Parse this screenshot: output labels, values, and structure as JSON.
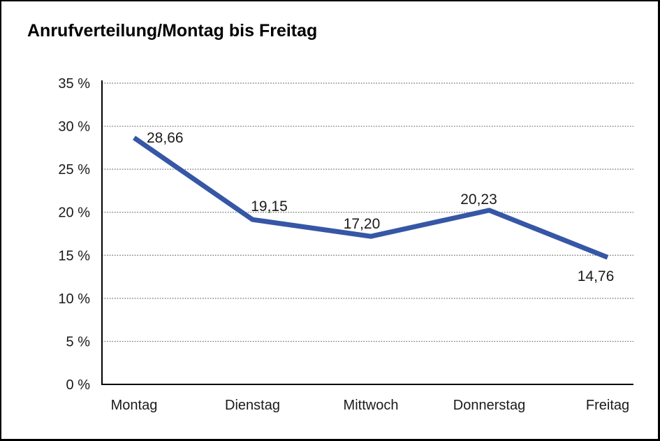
{
  "chart_data": {
    "type": "line",
    "title": "Anrufverteilung/Montag bis Freitag",
    "categories": [
      "Montag",
      "Dienstag",
      "Mittwoch",
      "Donnerstag",
      "Freitag"
    ],
    "series": [
      {
        "name": "Anrufverteilung",
        "values": [
          28.66,
          19.15,
          17.2,
          20.23,
          14.76
        ],
        "data_labels": [
          "28,66",
          "19,15",
          "17,20",
          "20,23",
          "14,76"
        ]
      }
    ],
    "xlabel": "",
    "ylabel": "",
    "ylim": [
      0,
      35
    ],
    "y_tick_step": 5,
    "y_ticks": [
      {
        "value": 35,
        "label": "35 %"
      },
      {
        "value": 30,
        "label": "30 %"
      },
      {
        "value": 25,
        "label": "25 %"
      },
      {
        "value": 20,
        "label": "20 %"
      },
      {
        "value": 15,
        "label": "15 %"
      },
      {
        "value": 10,
        "label": "10 %"
      },
      {
        "value": 5,
        "label": "5 %"
      },
      {
        "value": 0,
        "label": "0 %"
      }
    ],
    "grid": "horizontal-dotted",
    "legend_position": "none",
    "colors": {
      "line": "#3656A6",
      "axis": "#000000",
      "grid": "#6e6e6e",
      "text": "#1a1a1a",
      "background": "#ffffff"
    }
  }
}
